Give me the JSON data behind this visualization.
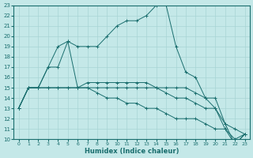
{
  "xlabel": "Humidex (Indice chaleur)",
  "xlim": [
    -0.5,
    23.5
  ],
  "ylim": [
    10,
    23
  ],
  "yticks": [
    10,
    11,
    12,
    13,
    14,
    15,
    16,
    17,
    18,
    19,
    20,
    21,
    22,
    23
  ],
  "xticks": [
    0,
    1,
    2,
    3,
    4,
    5,
    6,
    7,
    8,
    9,
    10,
    11,
    12,
    13,
    14,
    15,
    16,
    17,
    18,
    19,
    20,
    21,
    22,
    23
  ],
  "bg_color": "#c4e8e8",
  "grid_color": "#a8d4d4",
  "line_color": "#1a6e6e",
  "lines": [
    {
      "x": [
        0,
        1,
        2,
        3,
        4,
        5,
        6,
        7,
        8,
        9,
        10,
        11,
        12,
        13,
        14,
        15,
        16,
        17,
        18,
        19,
        20,
        21,
        22,
        23
      ],
      "y": [
        13,
        15,
        15,
        17,
        19,
        19.5,
        19,
        19,
        19,
        20,
        21,
        21.5,
        21.5,
        22,
        23,
        23,
        19,
        16.5,
        16,
        14,
        13,
        11,
        10,
        10.5
      ]
    },
    {
      "x": [
        0,
        1,
        2,
        3,
        4,
        5,
        6,
        7,
        8,
        9,
        10,
        11,
        12,
        13,
        14,
        15,
        16,
        17,
        18,
        19,
        20,
        21,
        22,
        23
      ],
      "y": [
        13,
        15,
        15,
        17,
        17,
        19.5,
        15,
        15.5,
        15.5,
        15.5,
        15.5,
        15.5,
        15.5,
        15.5,
        15,
        15,
        15,
        15,
        14.5,
        14,
        14,
        11.5,
        11,
        10.5
      ]
    },
    {
      "x": [
        0,
        1,
        2,
        3,
        4,
        5,
        6,
        7,
        8,
        9,
        10,
        11,
        12,
        13,
        14,
        15,
        16,
        17,
        18,
        19,
        20,
        21,
        22,
        23
      ],
      "y": [
        13,
        15,
        15,
        15,
        15,
        15,
        15,
        15,
        15,
        15,
        15,
        15,
        15,
        15,
        15,
        14.5,
        14,
        14,
        13.5,
        13,
        13,
        11.5,
        9.5,
        10.5
      ]
    },
    {
      "x": [
        0,
        1,
        2,
        3,
        4,
        5,
        6,
        7,
        8,
        9,
        10,
        11,
        12,
        13,
        14,
        15,
        16,
        17,
        18,
        19,
        20,
        21,
        22,
        23
      ],
      "y": [
        13,
        15,
        15,
        15,
        15,
        15,
        15,
        15,
        14.5,
        14,
        14,
        13.5,
        13.5,
        13,
        13,
        12.5,
        12,
        12,
        12,
        11.5,
        11,
        11,
        9.5,
        10.5
      ]
    }
  ]
}
